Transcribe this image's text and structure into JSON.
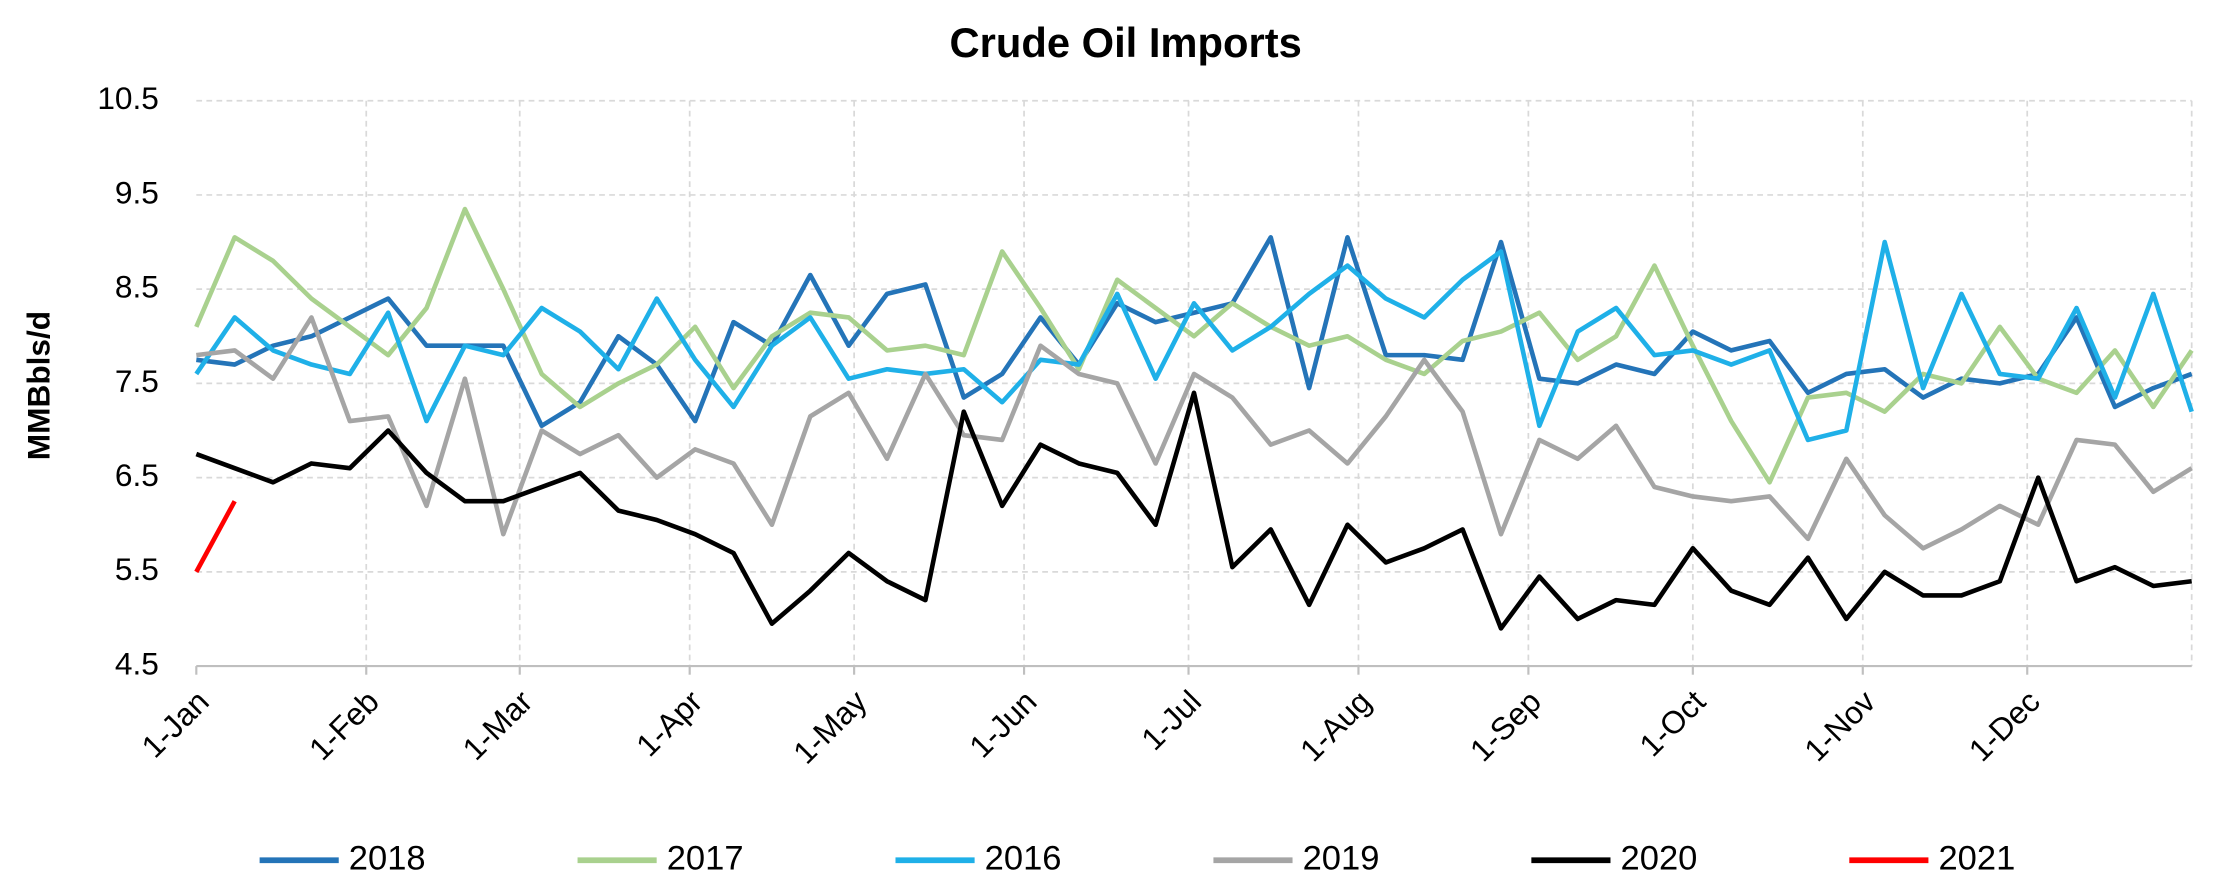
{
  "chart_data": {
    "type": "line",
    "title": "Crude Oil Imports",
    "y_label": "MMBbls/d",
    "x": [
      0,
      7,
      14,
      21,
      28,
      35,
      42,
      49,
      56,
      63,
      70,
      77,
      84,
      91,
      98,
      105,
      112,
      119,
      126,
      133,
      140,
      147,
      154,
      161,
      168,
      175,
      182,
      189,
      196,
      203,
      210,
      217,
      224,
      231,
      238,
      245,
      252,
      259,
      266,
      273,
      280,
      287,
      294,
      301,
      308,
      315,
      322,
      329,
      336,
      343,
      350,
      357,
      364
    ],
    "xlim": [
      0,
      364
    ],
    "xticks": [
      {
        "value": 0,
        "label": "1-Jan"
      },
      {
        "value": 31,
        "label": "1-Feb"
      },
      {
        "value": 59,
        "label": "1-Mar"
      },
      {
        "value": 90,
        "label": "1-Apr"
      },
      {
        "value": 120,
        "label": "1-May"
      },
      {
        "value": 151,
        "label": "1-Jun"
      },
      {
        "value": 181,
        "label": "1-Jul"
      },
      {
        "value": 212,
        "label": "1-Aug"
      },
      {
        "value": 243,
        "label": "1-Sep"
      },
      {
        "value": 273,
        "label": "1-Oct"
      },
      {
        "value": 304,
        "label": "1-Nov"
      },
      {
        "value": 334,
        "label": "1-Dec"
      }
    ],
    "ylim": [
      4.5,
      10.5
    ],
    "yticks": [
      4.5,
      5.5,
      6.5,
      7.5,
      8.5,
      9.5,
      10.5
    ],
    "grid": true,
    "legend": "bottom",
    "series": [
      {
        "name": "2018",
        "color": "#2474b8",
        "values": [
          7.75,
          7.7,
          7.9,
          8.0,
          8.2,
          8.4,
          7.9,
          7.9,
          7.9,
          7.05,
          7.3,
          8.0,
          7.7,
          7.1,
          8.15,
          7.9,
          8.65,
          7.9,
          8.45,
          8.55,
          7.35,
          7.6,
          8.2,
          7.7,
          8.35,
          8.15,
          8.25,
          8.35,
          9.05,
          7.45,
          9.05,
          7.8,
          7.8,
          7.75,
          9.0,
          7.55,
          7.5,
          7.7,
          7.6,
          8.05,
          7.85,
          7.95,
          7.4,
          7.6,
          7.65,
          7.35,
          7.55,
          7.5,
          7.6,
          8.2,
          7.25,
          7.45,
          7.6
        ]
      },
      {
        "name": "2017",
        "color": "#a9d18e",
        "values": [
          8.1,
          9.05,
          8.8,
          8.4,
          8.1,
          7.8,
          8.3,
          9.35,
          8.5,
          7.6,
          7.25,
          7.5,
          7.7,
          8.1,
          7.45,
          8.0,
          8.25,
          8.2,
          7.85,
          7.9,
          7.8,
          8.9,
          8.3,
          7.65,
          8.6,
          8.3,
          8.0,
          8.35,
          8.1,
          7.9,
          8.0,
          7.75,
          7.6,
          7.95,
          8.05,
          8.25,
          7.75,
          8.0,
          8.75,
          7.9,
          7.1,
          6.45,
          7.35,
          7.4,
          7.2,
          7.6,
          7.5,
          8.1,
          7.55,
          7.4,
          7.85,
          7.25,
          7.85
        ]
      },
      {
        "name": "2016",
        "color": "#1fb0e8",
        "values": [
          7.6,
          8.2,
          7.85,
          7.7,
          7.6,
          8.25,
          7.1,
          7.9,
          7.8,
          8.3,
          8.05,
          7.65,
          8.4,
          7.75,
          7.25,
          7.9,
          8.2,
          7.55,
          7.65,
          7.6,
          7.65,
          7.3,
          7.75,
          7.7,
          8.45,
          7.55,
          8.35,
          7.85,
          8.1,
          8.45,
          8.75,
          8.4,
          8.2,
          8.6,
          8.9,
          7.05,
          8.05,
          8.3,
          7.8,
          7.85,
          7.7,
          7.85,
          6.9,
          7.0,
          9.0,
          7.45,
          8.45,
          7.6,
          7.55,
          8.3,
          7.35,
          8.45,
          7.2
        ]
      },
      {
        "name": "2019",
        "color": "#a5a5a5",
        "values": [
          7.8,
          7.85,
          7.55,
          8.2,
          7.1,
          7.15,
          6.2,
          7.55,
          5.9,
          7.0,
          6.75,
          6.95,
          6.5,
          6.8,
          6.65,
          6.0,
          7.15,
          7.4,
          6.7,
          7.6,
          6.95,
          6.9,
          7.9,
          7.6,
          7.5,
          6.65,
          7.6,
          7.35,
          6.85,
          7.0,
          6.65,
          7.15,
          7.75,
          7.2,
          5.9,
          6.9,
          6.7,
          7.05,
          6.4,
          6.3,
          6.25,
          6.3,
          5.85,
          6.7,
          6.1,
          5.75,
          5.95,
          6.2,
          6.0,
          6.9,
          6.85,
          6.35,
          6.6
        ]
      },
      {
        "name": "2020",
        "color": "#000000",
        "values": [
          6.75,
          6.6,
          6.45,
          6.65,
          6.6,
          7.0,
          6.55,
          6.25,
          6.25,
          6.4,
          6.55,
          6.15,
          6.05,
          5.9,
          5.7,
          4.95,
          5.3,
          5.7,
          5.4,
          5.2,
          7.2,
          6.2,
          6.85,
          6.65,
          6.55,
          6.0,
          7.4,
          5.55,
          5.95,
          5.15,
          6.0,
          5.6,
          5.75,
          5.95,
          4.9,
          5.45,
          5.0,
          5.2,
          5.15,
          5.75,
          5.3,
          5.15,
          5.65,
          5.0,
          5.5,
          5.25,
          5.25,
          5.4,
          6.5,
          5.4,
          5.55,
          5.35,
          5.4
        ]
      },
      {
        "name": "2021",
        "color": "#ff0000",
        "values": [
          5.5,
          6.25,
          null,
          null,
          null,
          null,
          null,
          null,
          null,
          null,
          null,
          null,
          null,
          null,
          null,
          null,
          null,
          null,
          null,
          null,
          null,
          null,
          null,
          null,
          null,
          null,
          null,
          null,
          null,
          null,
          null,
          null,
          null,
          null,
          null,
          null,
          null,
          null,
          null,
          null,
          null,
          null,
          null,
          null,
          null,
          null,
          null,
          null,
          null,
          null,
          null,
          null,
          null
        ]
      }
    ]
  }
}
